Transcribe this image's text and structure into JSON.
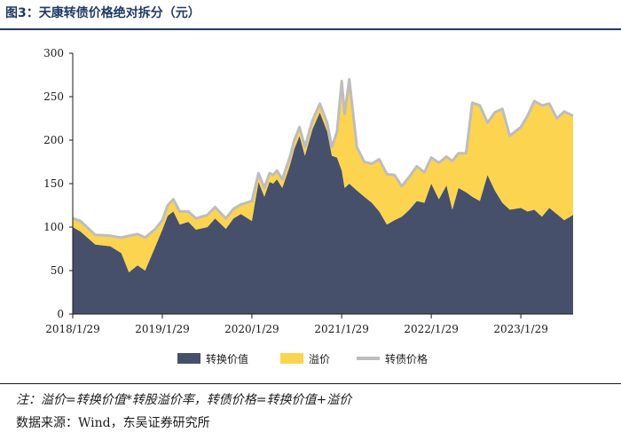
{
  "header": {
    "title": "图3：天康转债价格绝对拆分（元）"
  },
  "footer": {
    "note": "注：溢价=转换价值*转股溢价率，转债价格=转换价值+溢价",
    "source": "数据来源：Wind，东吴证券研究所"
  },
  "colors": {
    "conversion": "#46506a",
    "premium": "#fdd44f",
    "price": "#bdbdbd"
  },
  "chart_data": {
    "type": "area",
    "ylim": [
      0,
      300
    ],
    "yticks": [
      0,
      50,
      100,
      150,
      200,
      250,
      300
    ],
    "xlim": [
      "2018-01-29",
      "2023-08-30"
    ],
    "xticks": [
      "2018/1/29",
      "2019/1/29",
      "2020/1/29",
      "2021/1/29",
      "2022/1/29",
      "2023/1/29"
    ],
    "legend_position": "bottom",
    "grid": false,
    "x": [
      "2018-01-29",
      "2018-03-01",
      "2018-05-01",
      "2018-07-01",
      "2018-08-15",
      "2018-09-15",
      "2018-10-20",
      "2018-11-20",
      "2019-01-01",
      "2019-01-29",
      "2019-02-20",
      "2019-03-15",
      "2019-04-10",
      "2019-05-15",
      "2019-06-15",
      "2019-08-01",
      "2019-09-01",
      "2019-10-15",
      "2019-11-15",
      "2019-12-15",
      "2020-01-29",
      "2020-02-25",
      "2020-03-20",
      "2020-04-10",
      "2020-04-25",
      "2020-05-10",
      "2020-06-01",
      "2020-07-01",
      "2020-07-20",
      "2020-08-10",
      "2020-09-01",
      "2020-10-01",
      "2020-11-01",
      "2020-12-01",
      "2020-12-20",
      "2021-01-10",
      "2021-01-29",
      "2021-02-10",
      "2021-03-01",
      "2021-04-01",
      "2021-05-01",
      "2021-06-01",
      "2021-07-01",
      "2021-08-01",
      "2021-09-01",
      "2021-10-01",
      "2021-11-01",
      "2021-12-01",
      "2022-01-01",
      "2022-01-29",
      "2022-03-01",
      "2022-04-01",
      "2022-04-25",
      "2022-05-20",
      "2022-06-20",
      "2022-07-15",
      "2022-08-15",
      "2022-09-15",
      "2022-10-15",
      "2022-11-15",
      "2022-12-15",
      "2023-01-29",
      "2023-02-25",
      "2023-03-25",
      "2023-04-25",
      "2023-05-25",
      "2023-06-25",
      "2023-07-25",
      "2023-08-30"
    ],
    "series": [
      {
        "name": "转换价值",
        "color": "#46506a",
        "values": [
          100,
          95,
          80,
          78,
          70,
          48,
          56,
          50,
          78,
          97,
          113,
          118,
          103,
          106,
          97,
          100,
          110,
          98,
          110,
          115,
          107,
          152,
          135,
          152,
          150,
          155,
          145,
          170,
          190,
          205,
          182,
          212,
          232,
          210,
          182,
          180,
          165,
          145,
          150,
          142,
          135,
          128,
          118,
          103,
          108,
          112,
          120,
          130,
          128,
          150,
          132,
          148,
          120,
          145,
          140,
          135,
          130,
          160,
          142,
          128,
          120,
          122,
          118,
          120,
          112,
          122,
          115,
          108,
          114
        ]
      },
      {
        "name": "溢价",
        "color": "#fdd44f",
        "values": [
          10,
          12,
          11,
          12,
          18,
          42,
          36,
          38,
          20,
          11,
          12,
          14,
          15,
          12,
          13,
          14,
          13,
          12,
          11,
          11,
          23,
          10,
          10,
          10,
          10,
          10,
          10,
          10,
          10,
          10,
          10,
          10,
          10,
          10,
          10,
          30,
          103,
          85,
          120,
          50,
          40,
          45,
          60,
          58,
          52,
          35,
          38,
          40,
          35,
          30,
          42,
          33,
          56,
          40,
          45,
          108,
          110,
          60,
          90,
          108,
          85,
          93,
          110,
          125,
          128,
          120,
          110,
          125,
          114
        ]
      },
      {
        "name": "转债价格",
        "color": "#bdbdbd",
        "values": [
          110,
          107,
          91,
          90,
          88,
          90,
          92,
          88,
          98,
          108,
          125,
          132,
          118,
          118,
          110,
          114,
          123,
          110,
          121,
          126,
          130,
          162,
          145,
          162,
          160,
          165,
          155,
          180,
          200,
          215,
          192,
          222,
          242,
          220,
          192,
          210,
          268,
          230,
          270,
          192,
          175,
          173,
          178,
          161,
          160,
          147,
          158,
          170,
          163,
          180,
          174,
          181,
          176,
          185,
          185,
          243,
          240,
          220,
          232,
          236,
          205,
          215,
          228,
          245,
          240,
          242,
          225,
          233,
          228
        ]
      }
    ]
  }
}
